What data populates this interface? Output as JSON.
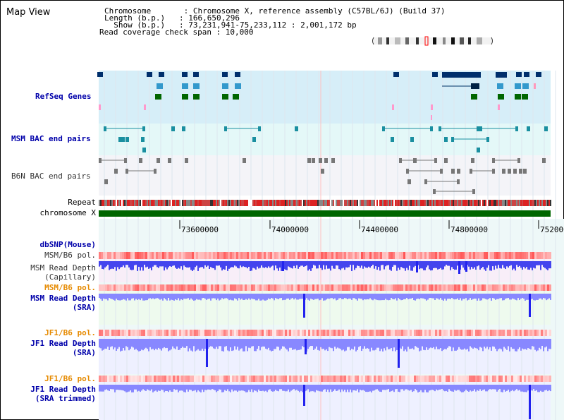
{
  "title": "Map View",
  "info": {
    "chromosome": "Chromosome       : Chromosome X, reference assembly (C57BL/6J) (Build 37)",
    "length": "Length (b.p.)   : 166,650,296",
    "show": "  Show (b.p.)   : 73,231,941-75,233,112 : 2,001,172 bp",
    "span": "Read coverage check span : 10,000"
  },
  "tracks": {
    "refseq": "RefSeq Genes",
    "msm_bac": "MSM BAC end pairs",
    "b6n_bac": "B6N BAC end pairs",
    "repeat": "Repeat",
    "chromosome": "chromosome X",
    "dbsnp": "dbSNP(Mouse)",
    "msm_b6_pol_1": "MSM/B6 pol.",
    "msm_depth_cap_1": "MSM Read Depth",
    "msm_depth_cap_2": "(Capillary)",
    "msm_b6_pol_2": "MSM/B6 pol.",
    "msm_depth_sra_1": "MSM Read Depth",
    "msm_depth_sra_2": "(SRA)",
    "jf1_b6_pol_1": "JF1/B6 pol.",
    "jf1_depth_sra_1": "JF1 Read Depth",
    "jf1_depth_sra_2": "(SRA)",
    "jf1_b6_pol_2": "JF1/B6 pol.",
    "jf1_depth_trim_1": "JF1 Read Depth",
    "jf1_depth_trim_2": "(SRA trimmed)"
  },
  "axis": {
    "ticks": [
      "73600000",
      "74000000",
      "74400000",
      "74800000",
      "75200000"
    ]
  },
  "colors": {
    "gene_dark": "#002f6c",
    "gene_light": "#3399cc",
    "gene_green": "#006600",
    "bac_teal": "#1a8fa0",
    "depth_blue": "#2222ee",
    "depth_light": "#8888ff",
    "pol_red": "#ff3333",
    "chrom_green": "#006600"
  }
}
